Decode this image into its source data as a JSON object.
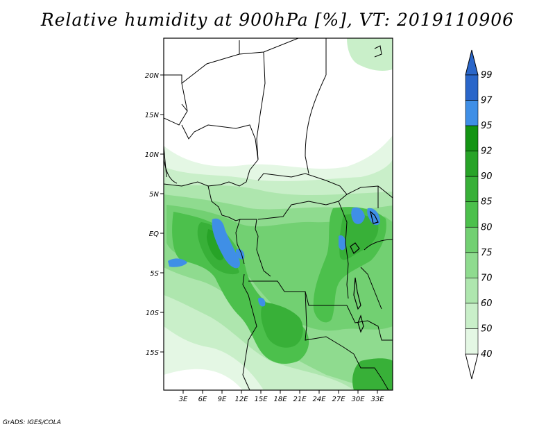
{
  "title": "Relative humidity at 900hPa [%], VT: 2019110906",
  "credit": "GrADS: IGES/COLA",
  "axes": {
    "lat_labels": [
      "20N",
      "15N",
      "10N",
      "5N",
      "EQ",
      "5S",
      "10S",
      "15S"
    ],
    "lon_labels": [
      "3E",
      "6E",
      "9E",
      "12E",
      "15E",
      "18E",
      "21E",
      "24E",
      "27E",
      "30E",
      "33E"
    ]
  },
  "legend": {
    "labels": [
      "99",
      "97",
      "95",
      "92",
      "90",
      "85",
      "80",
      "75",
      "70",
      "60",
      "50",
      "40"
    ],
    "colors": [
      "#2a66c9",
      "#3f8fe6",
      "#139413",
      "#27a327",
      "#38b038",
      "#4cc04c",
      "#72d072",
      "#8fdb8f",
      "#aee6ae",
      "#c9efc9",
      "#e4f7e4"
    ],
    "top_arrow_color": "#2a66c9",
    "bottom_arrow_color": "#ffffff"
  },
  "colors": {
    "land_boundary": "#000000",
    "frame": "#000000"
  }
}
